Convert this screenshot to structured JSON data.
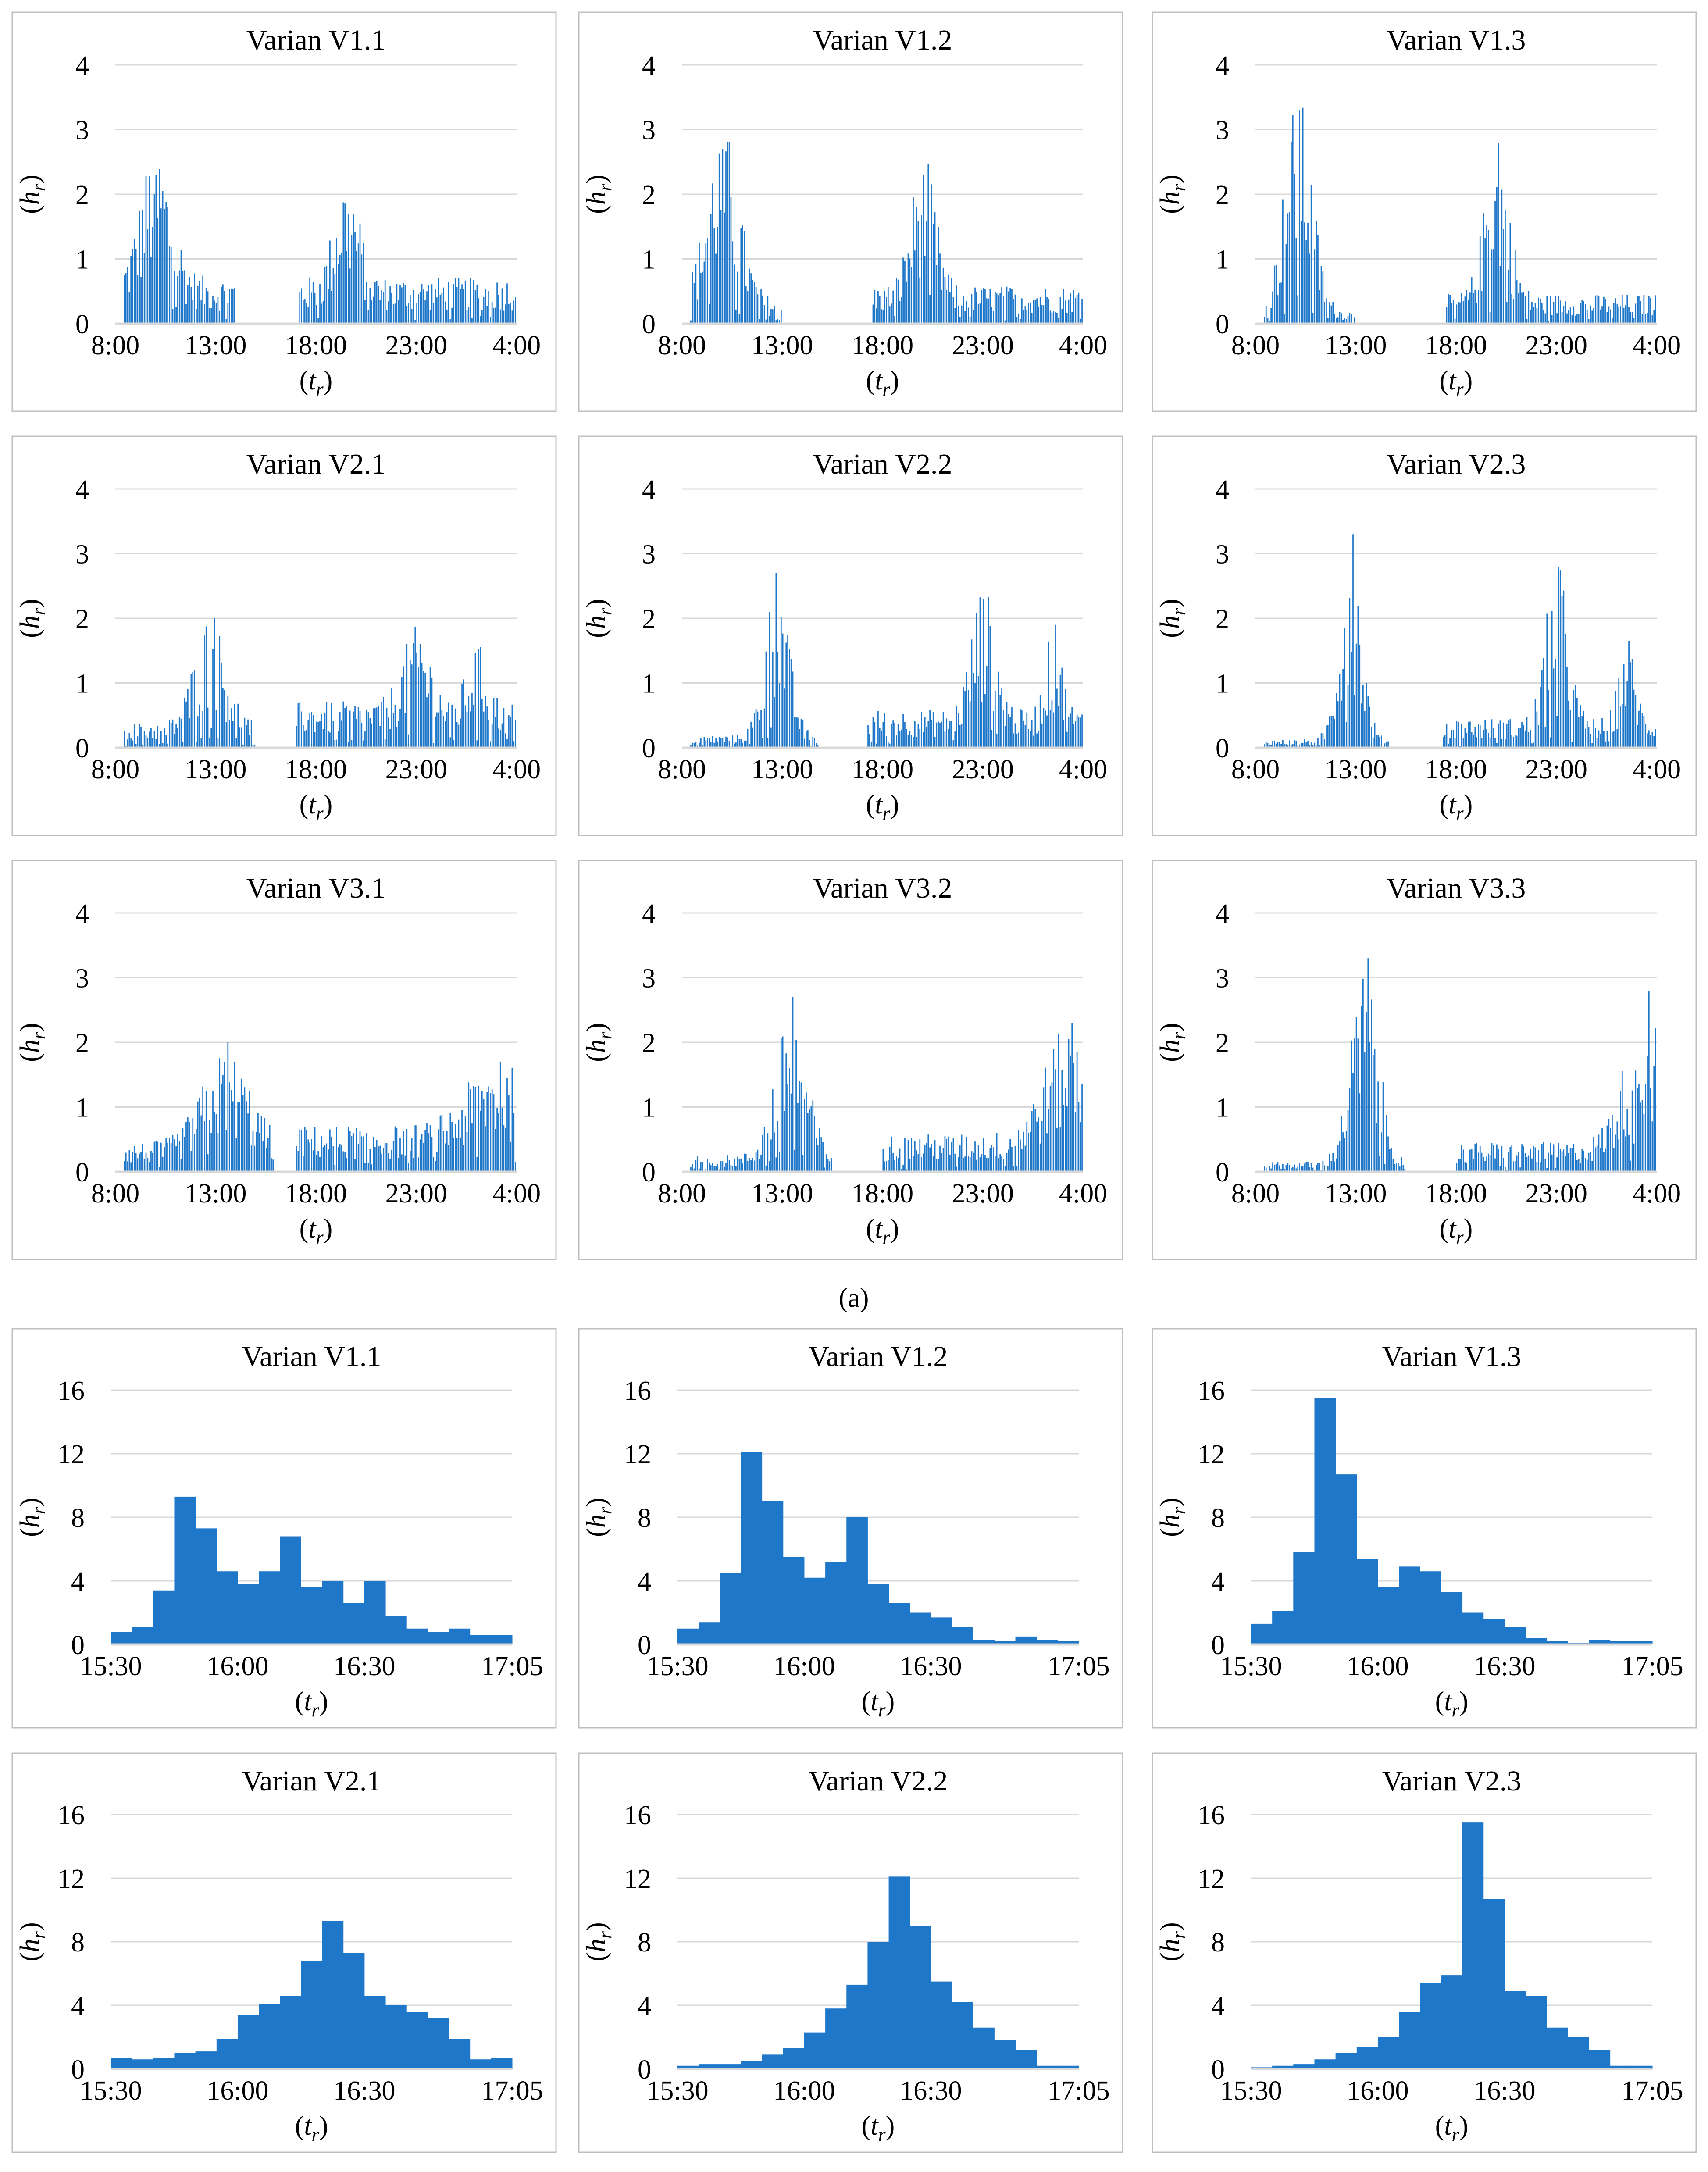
{
  "figure": {
    "caption_a": "(a)",
    "bar_color": "#1f77c9",
    "grid_color": "#d9d9d9",
    "frame_color": "#bfbfbf"
  },
  "chart_data": [
    {
      "group": "a",
      "type": "bar",
      "title": "Varian V1.1",
      "xlabel": "(t_r)",
      "ylabel": "(h_r)",
      "ylim": [
        0,
        4
      ],
      "yticks": [
        "0",
        "1",
        "2",
        "3",
        "4"
      ],
      "xticks": [
        "8:00",
        "13:00",
        "18:00",
        "23:00",
        "4:00"
      ],
      "x_range": [
        "8:00",
        "4:00 (+1 day)"
      ],
      "bin_minutes": 5,
      "series": [
        {
          "name": "h_r",
          "description": "dense 5-minute bars; morning peak ~2.0 near 10:00, gap ~14:00-17:00, evening peak ~1.7 near 19:30, tail ~0.5-1.0 until 4:00"
        }
      ]
    },
    {
      "group": "a",
      "type": "bar",
      "title": "Varian V1.2",
      "xlabel": "(t_r)",
      "ylabel": "(h_r)",
      "ylim": [
        0,
        4
      ],
      "yticks": [
        "0",
        "1",
        "2",
        "3",
        "4"
      ],
      "xticks": [
        "8:00",
        "13:00",
        "18:00",
        "23:00",
        "4:00"
      ],
      "x_range": [
        "8:00",
        "4:00 (+1 day)"
      ],
      "bin_minutes": 5,
      "series": [
        {
          "name": "h_r",
          "description": "morning peak ~2.7 near 10:00, decay to 0 by 14:00, evening peak ~2.3 near 20:00, tail ~0.5"
        }
      ]
    },
    {
      "group": "a",
      "type": "bar",
      "title": "Varian V1.3",
      "xlabel": "(t_r)",
      "ylabel": "(h_r)",
      "ylim": [
        0,
        4
      ],
      "yticks": [
        "0",
        "1",
        "2",
        "3",
        "4"
      ],
      "xticks": [
        "8:00",
        "13:00",
        "18:00",
        "23:00",
        "4:00"
      ],
      "x_range": [
        "8:00",
        "4:00 (+1 day)"
      ],
      "bin_minutes": 5,
      "series": [
        {
          "name": "h_r",
          "description": "morning peak ~3.3 near 10:10, evening peak ~2.8 near 20:00, tail ~0.4"
        }
      ]
    },
    {
      "group": "a",
      "type": "bar",
      "title": "Varian V2.1",
      "xlabel": "(t_r)",
      "ylabel": "(h_r)",
      "ylim": [
        0,
        4
      ],
      "yticks": [
        "0",
        "1",
        "2",
        "3",
        "4"
      ],
      "xticks": [
        "8:00",
        "13:00",
        "18:00",
        "23:00",
        "4:00"
      ],
      "x_range": [
        "8:00",
        "4:00 (+1 day)"
      ],
      "bin_minutes": 5,
      "series": [
        {
          "name": "h_r",
          "description": "midday peak ~2.0 near 13:00, evening cluster peaks ~1.6 near 23:00"
        }
      ]
    },
    {
      "group": "a",
      "type": "bar",
      "title": "Varian V2.2",
      "xlabel": "(t_r)",
      "ylabel": "(h_r)",
      "ylim": [
        0,
        4
      ],
      "yticks": [
        "0",
        "1",
        "2",
        "3",
        "4"
      ],
      "xticks": [
        "8:00",
        "13:00",
        "18:00",
        "23:00",
        "4:00"
      ],
      "x_range": [
        "8:00",
        "4:00 (+1 day)"
      ],
      "bin_minutes": 5,
      "series": [
        {
          "name": "h_r",
          "description": "midday peak ~2.7 near 12:40, evening peak ~2.3 near 23:00, secondary ~1.9 near 2:30"
        }
      ]
    },
    {
      "group": "a",
      "type": "bar",
      "title": "Varian V2.3",
      "xlabel": "(t_r)",
      "ylabel": "(h_r)",
      "ylim": [
        0,
        4
      ],
      "yticks": [
        "0",
        "1",
        "2",
        "3",
        "4"
      ],
      "xticks": [
        "8:00",
        "13:00",
        "18:00",
        "23:00",
        "4:00"
      ],
      "x_range": [
        "8:00",
        "4:00 (+1 day)"
      ],
      "bin_minutes": 5,
      "series": [
        {
          "name": "h_r",
          "description": "midday peak ~3.3 near 12:40, evening peak ~2.8 near 23:00"
        }
      ]
    },
    {
      "group": "a",
      "type": "bar",
      "title": "Varian V3.1",
      "xlabel": "(t_r)",
      "ylabel": "(h_r)",
      "ylim": [
        0,
        4
      ],
      "yticks": [
        "0",
        "1",
        "2",
        "3",
        "4"
      ],
      "xticks": [
        "8:00",
        "13:00",
        "18:00",
        "23:00",
        "4:00"
      ],
      "x_range": [
        "8:00",
        "4:00 (+1 day)"
      ],
      "bin_minutes": 5,
      "series": [
        {
          "name": "h_r",
          "description": "peak ~2.0 near 14:00, rising evening activity to ~1.7 near 3:00"
        }
      ]
    },
    {
      "group": "a",
      "type": "bar",
      "title": "Varian V3.2",
      "xlabel": "(t_r)",
      "ylabel": "(h_r)",
      "ylim": [
        0,
        4
      ],
      "yticks": [
        "0",
        "1",
        "2",
        "3",
        "4"
      ],
      "xticks": [
        "8:00",
        "13:00",
        "18:00",
        "23:00",
        "4:00"
      ],
      "x_range": [
        "8:00",
        "4:00 (+1 day)"
      ],
      "bin_minutes": 5,
      "series": [
        {
          "name": "h_r",
          "description": "peak ~2.7 near 13:30, rising tail to ~2.3 near 3:00"
        }
      ]
    },
    {
      "group": "a",
      "type": "bar",
      "title": "Varian V3.3",
      "xlabel": "(t_r)",
      "ylabel": "(h_r)",
      "ylim": [
        0,
        4
      ],
      "yticks": [
        "0",
        "1",
        "2",
        "3",
        "4"
      ],
      "xticks": [
        "8:00",
        "13:00",
        "18:00",
        "23:00",
        "4:00"
      ],
      "x_range": [
        "8:00",
        "4:00 (+1 day)"
      ],
      "bin_minutes": 5,
      "series": [
        {
          "name": "h_r",
          "description": "peak ~3.3 near 13:30, rising tail to ~2.8 near 3:30"
        }
      ]
    },
    {
      "group": "b",
      "type": "bar",
      "title": "Varian V1.1",
      "xlabel": "(t_r)",
      "ylabel": "(h_r)",
      "ylim": [
        0,
        16
      ],
      "yticks": [
        "0",
        "4",
        "8",
        "12",
        "16"
      ],
      "xticks": [
        "15:30",
        "16:00",
        "16:30",
        "17:05"
      ],
      "x_range": [
        "15:30",
        "17:05"
      ],
      "bin_minutes": 5,
      "series": [
        {
          "name": "h_r",
          "values": [
            0.8,
            1.1,
            3.4,
            9.3,
            7.3,
            4.6,
            3.8,
            4.6,
            6.8,
            3.6,
            4.0,
            2.6,
            4.0,
            1.8,
            1.0,
            0.8,
            1.0,
            0.6,
            0.6
          ]
        }
      ]
    },
    {
      "group": "b",
      "type": "bar",
      "title": "Varian V1.2",
      "xlabel": "(t_r)",
      "ylabel": "(h_r)",
      "ylim": [
        0,
        16
      ],
      "yticks": [
        "0",
        "4",
        "8",
        "12",
        "16"
      ],
      "xticks": [
        "15:30",
        "16:00",
        "16:30",
        "17:05"
      ],
      "x_range": [
        "15:30",
        "17:05"
      ],
      "bin_minutes": 5,
      "series": [
        {
          "name": "h_r",
          "values": [
            1.0,
            1.4,
            4.5,
            12.1,
            9.0,
            5.5,
            4.2,
            5.2,
            8.0,
            3.8,
            2.6,
            2.0,
            1.7,
            1.1,
            0.3,
            0.2,
            0.5,
            0.3,
            0.2
          ]
        }
      ]
    },
    {
      "group": "b",
      "type": "bar",
      "title": "Varian V1.3",
      "xlabel": "(t_r)",
      "ylabel": "(h_r)",
      "ylim": [
        0,
        16
      ],
      "yticks": [
        "0",
        "4",
        "8",
        "12",
        "16"
      ],
      "xticks": [
        "15:30",
        "16:00",
        "16:30",
        "17:05"
      ],
      "x_range": [
        "15:30",
        "17:05"
      ],
      "bin_minutes": 5,
      "series": [
        {
          "name": "h_r",
          "values": [
            1.3,
            2.1,
            5.8,
            15.5,
            10.7,
            5.4,
            3.6,
            4.9,
            4.6,
            3.3,
            2.0,
            1.6,
            1.1,
            0.4,
            0.2,
            0.1,
            0.3,
            0.2,
            0.2
          ]
        }
      ]
    },
    {
      "group": "b",
      "type": "bar",
      "title": "Varian V2.1",
      "xlabel": "(t_r)",
      "ylabel": "(h_r)",
      "ylim": [
        0,
        16
      ],
      "yticks": [
        "0",
        "4",
        "8",
        "12",
        "16"
      ],
      "xticks": [
        "15:30",
        "16:00",
        "16:30",
        "17:05"
      ],
      "x_range": [
        "15:30",
        "17:05"
      ],
      "bin_minutes": 5,
      "series": [
        {
          "name": "h_r",
          "values": [
            0.7,
            0.6,
            0.7,
            1.0,
            1.1,
            1.9,
            3.4,
            4.1,
            4.6,
            6.8,
            9.3,
            7.3,
            4.6,
            4.0,
            3.6,
            3.2,
            1.9,
            0.6,
            0.7
          ]
        }
      ]
    },
    {
      "group": "b",
      "type": "bar",
      "title": "Varian V2.2",
      "xlabel": "(t_r)",
      "ylabel": "(h_r)",
      "ylim": [
        0,
        16
      ],
      "yticks": [
        "0",
        "4",
        "8",
        "12",
        "16"
      ],
      "xticks": [
        "15:30",
        "16:00",
        "16:30",
        "17:05"
      ],
      "x_range": [
        "15:30",
        "17:05"
      ],
      "bin_minutes": 5,
      "series": [
        {
          "name": "h_r",
          "values": [
            0.2,
            0.3,
            0.3,
            0.5,
            0.9,
            1.3,
            2.3,
            3.8,
            5.3,
            8.0,
            12.1,
            9.0,
            5.5,
            4.2,
            2.6,
            1.8,
            1.2,
            0.2,
            0.2
          ]
        }
      ]
    },
    {
      "group": "b",
      "type": "bar",
      "title": "Varian V2.3",
      "xlabel": "(t_r)",
      "ylabel": "(h_r)",
      "ylim": [
        0,
        16
      ],
      "yticks": [
        "0",
        "4",
        "8",
        "12",
        "16"
      ],
      "xticks": [
        "15:30",
        "16:00",
        "16:30",
        "17:05"
      ],
      "x_range": [
        "15:30",
        "17:05"
      ],
      "bin_minutes": 5,
      "series": [
        {
          "name": "h_r",
          "values": [
            0.1,
            0.2,
            0.3,
            0.6,
            1.0,
            1.4,
            2.0,
            3.6,
            5.4,
            5.9,
            15.5,
            10.7,
            4.9,
            4.6,
            2.6,
            2.0,
            1.2,
            0.2,
            0.2
          ]
        }
      ]
    }
  ]
}
